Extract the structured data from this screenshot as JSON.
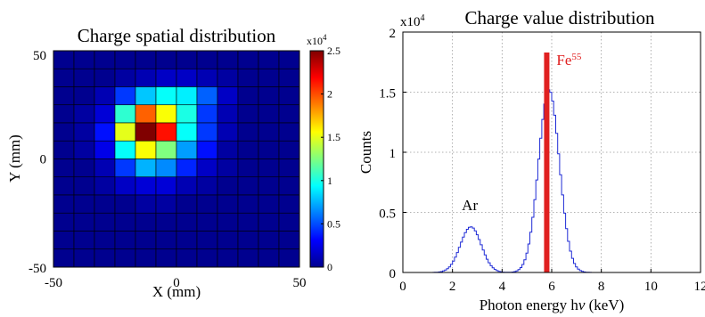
{
  "chart_data": [
    {
      "type": "heatmap",
      "title": "Charge spatial distribution",
      "xlabel": "X (mm)",
      "ylabel": "Y (mm)",
      "xlim": [
        -50,
        50
      ],
      "ylim": [
        -50,
        50
      ],
      "x_ticks": [
        "-50",
        "0",
        "50"
      ],
      "y_ticks": [
        "50",
        "0",
        "-50"
      ],
      "grid_rows": 12,
      "grid_cols": 12,
      "values_x1e4": [
        [
          0.0,
          0.0,
          0.0,
          0.0,
          0.0,
          0.0,
          0.0,
          0.0,
          0.0,
          0.0,
          0.0,
          0.0
        ],
        [
          0.0,
          0.0,
          0.0,
          0.05,
          0.1,
          0.15,
          0.15,
          0.1,
          0.05,
          0.0,
          0.0,
          0.0
        ],
        [
          0.0,
          0.0,
          0.1,
          0.45,
          0.8,
          0.95,
          0.9,
          0.55,
          0.15,
          0.0,
          0.0,
          0.0
        ],
        [
          0.0,
          0.05,
          0.2,
          1.05,
          1.95,
          1.55,
          1.0,
          0.45,
          0.1,
          0.0,
          0.0,
          0.0
        ],
        [
          0.0,
          0.05,
          0.35,
          1.5,
          2.5,
          2.15,
          0.95,
          0.45,
          0.1,
          0.0,
          0.0,
          0.0
        ],
        [
          0.0,
          0.05,
          0.25,
          0.95,
          1.55,
          1.25,
          0.7,
          0.35,
          0.05,
          0.0,
          0.0,
          0.0
        ],
        [
          0.0,
          0.0,
          0.1,
          0.45,
          0.75,
          0.65,
          0.4,
          0.15,
          0.05,
          0.0,
          0.0,
          0.0
        ],
        [
          0.0,
          0.0,
          0.05,
          0.15,
          0.2,
          0.2,
          0.1,
          0.05,
          0.0,
          0.0,
          0.0,
          0.0
        ],
        [
          0.0,
          0.0,
          0.0,
          0.0,
          0.05,
          0.05,
          0.0,
          0.0,
          0.0,
          0.0,
          0.0,
          0.0
        ],
        [
          0.0,
          0.0,
          0.0,
          0.0,
          0.0,
          0.0,
          0.0,
          0.0,
          0.0,
          0.0,
          0.0,
          0.0
        ],
        [
          0.0,
          0.0,
          0.0,
          0.0,
          0.0,
          0.0,
          0.0,
          0.0,
          0.0,
          0.0,
          0.0,
          0.0
        ],
        [
          0.0,
          0.0,
          0.0,
          0.0,
          0.0,
          0.0,
          0.0,
          0.0,
          0.0,
          0.0,
          0.0,
          0.0
        ]
      ],
      "colorbar": {
        "range": [
          0,
          2.5
        ],
        "exponent": "x10",
        "exponent_power": "4",
        "tick_values": [
          0,
          0.5,
          1,
          1.5,
          2,
          2.5
        ],
        "tick_labels": [
          "0",
          "0.5",
          "1",
          "1.5",
          "2",
          "2.5"
        ]
      }
    },
    {
      "type": "line",
      "title": "Charge value distribution",
      "xlabel_pre": "Photon energy h",
      "xlabel_nu": "ν",
      "xlabel_post": " (keV)",
      "ylabel": "Counts",
      "xlim": [
        0,
        12
      ],
      "ylim": [
        0,
        2
      ],
      "y_exponent": "x10",
      "y_exponent_power": "4",
      "x_ticks": [
        0,
        2,
        4,
        6,
        8,
        10,
        12
      ],
      "x_tick_labels": [
        "0",
        "2",
        "4",
        "6",
        "8",
        "10",
        "12"
      ],
      "y_ticks": [
        0,
        0.5,
        1,
        1.5,
        2
      ],
      "y_tick_labels": [
        "0",
        "0.5",
        "1",
        "1.5",
        "2"
      ],
      "grid": true,
      "series_color": "#1f2bd6",
      "peaks": [
        {
          "label": "Ar",
          "x": 2.7,
          "height": 0.38,
          "sigma": 0.42
        },
        {
          "label": "",
          "x": 5.85,
          "height": 1.52,
          "sigma": 0.42
        }
      ],
      "marker": {
        "label": "Fe",
        "superscript": "55",
        "x": 5.8,
        "top": 1.83,
        "color": "#e02020"
      },
      "annotations": [
        {
          "text": "Ar",
          "x": 2.7,
          "y": 0.52
        }
      ]
    }
  ]
}
